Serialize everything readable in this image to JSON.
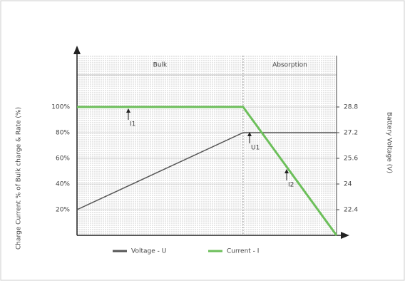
{
  "chart_data": {
    "type": "line",
    "y_label": "Charge Current % of Bulk charge & Rate (%)",
    "y2_label": "Battery Voltage (V)",
    "regions": [
      "Bulk",
      "Absorption"
    ],
    "annotations": [
      "I1",
      "U1",
      "I2"
    ],
    "x": [
      0,
      64,
      100
    ],
    "xlim": [
      0,
      100
    ],
    "ylim": [
      0,
      140
    ],
    "yticks": [
      {
        "value": 20,
        "label": "20%"
      },
      {
        "value": 40,
        "label": "40%"
      },
      {
        "value": 60,
        "label": "60%"
      },
      {
        "value": 80,
        "label": "80%"
      },
      {
        "value": 100,
        "label": "100%"
      }
    ],
    "y2lim": [
      20.8,
      32
    ],
    "y2ticks": [
      22.4,
      24,
      25.6,
      27.2,
      28.8
    ],
    "grid": true,
    "series": [
      {
        "name": "Voltage - U",
        "color": "#555555",
        "axis": "y2",
        "values": [
          22.4,
          27.2,
          27.2
        ]
      },
      {
        "name": "Current - I",
        "color": "#6cbf5a",
        "values": [
          100,
          100,
          0
        ]
      }
    ]
  }
}
